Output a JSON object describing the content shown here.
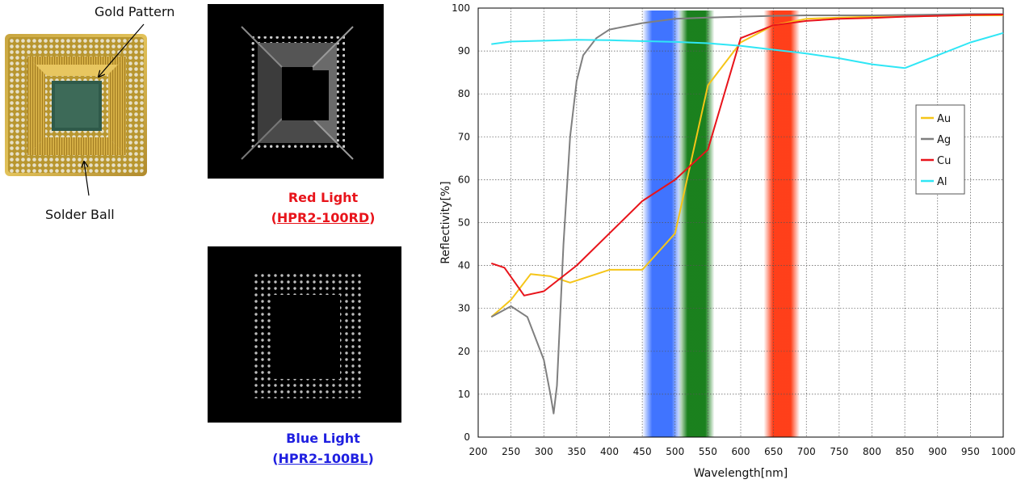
{
  "callouts": {
    "gold_pattern": "Gold Pattern",
    "solder_ball": "Solder Ball"
  },
  "captions": {
    "red": {
      "title": "Red Light",
      "model": "HPR2-100RD",
      "color": "#e8141b"
    },
    "blue": {
      "title": "Blue Light",
      "model": "HPR2-100BL",
      "color": "#1f1fe0"
    }
  },
  "chart_data": {
    "type": "line",
    "xlabel": "Wavelength[nm]",
    "ylabel": "Reflectivity[%]",
    "xlim": [
      200,
      1000
    ],
    "ylim": [
      0,
      100
    ],
    "xticks": [
      200,
      250,
      300,
      350,
      400,
      450,
      500,
      550,
      600,
      650,
      700,
      750,
      800,
      850,
      900,
      950,
      1000
    ],
    "yticks": [
      0,
      10,
      20,
      30,
      40,
      50,
      60,
      70,
      80,
      90,
      100
    ],
    "grid": true,
    "legend_position": "right",
    "bands": [
      {
        "name": "blue",
        "range": [
          460,
          500
        ],
        "color": "#1e5cff"
      },
      {
        "name": "green",
        "range": [
          515,
          550
        ],
        "color": "#0f7a12"
      },
      {
        "name": "red",
        "range": [
          645,
          680
        ],
        "color": "#ff2a00"
      }
    ],
    "series": [
      {
        "name": "Au",
        "color": "#f5c518",
        "x": [
          220,
          250,
          280,
          310,
          340,
          350,
          400,
          450,
          500,
          550,
          600,
          650,
          700,
          750,
          800,
          850,
          900,
          950,
          1000
        ],
        "y": [
          28,
          32,
          38,
          37.5,
          36,
          36.5,
          39,
          39,
          47.5,
          82,
          92,
          96,
          97.5,
          97.8,
          98,
          98,
          98.2,
          98.3,
          98.3
        ]
      },
      {
        "name": "Ag",
        "color": "#7f7f7f",
        "x": [
          220,
          250,
          275,
          300,
          310,
          315,
          320,
          330,
          340,
          350,
          360,
          380,
          400,
          450,
          500,
          550,
          600,
          650,
          700,
          750,
          800,
          850,
          900,
          950,
          1000
        ],
        "y": [
          28,
          30.5,
          28,
          18,
          10,
          5.5,
          12,
          45,
          70,
          83,
          89,
          93,
          95,
          96.5,
          97.5,
          97.8,
          98,
          98.2,
          98.3,
          98.3,
          98.3,
          98.4,
          98.5,
          98.6,
          98.6
        ]
      },
      {
        "name": "Cu",
        "color": "#e8141b",
        "x": [
          220,
          240,
          270,
          300,
          350,
          400,
          450,
          500,
          550,
          600,
          650,
          700,
          750,
          800,
          850,
          900,
          950,
          1000
        ],
        "y": [
          40.5,
          39.5,
          33,
          34,
          40,
          47.5,
          55,
          60,
          67,
          93,
          96,
          97,
          97.5,
          97.7,
          98,
          98.2,
          98.4,
          98.5
        ]
      },
      {
        "name": "Al",
        "color": "#2fe6f5",
        "x": [
          220,
          250,
          300,
          350,
          400,
          450,
          500,
          550,
          600,
          650,
          700,
          750,
          800,
          850,
          900,
          950,
          1000
        ],
        "y": [
          91.6,
          92.2,
          92.4,
          92.6,
          92.5,
          92.3,
          92.1,
          91.8,
          91.2,
          90.3,
          89.4,
          88.3,
          86.9,
          86,
          89,
          92,
          94.2
        ]
      }
    ]
  }
}
